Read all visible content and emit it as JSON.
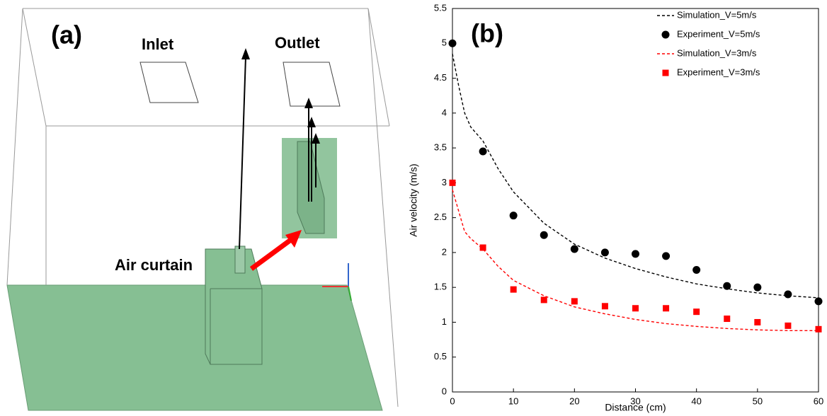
{
  "panel_a": {
    "label": "(a)",
    "inlet": "Inlet",
    "outlet": "Outlet",
    "device": "Air curtain"
  },
  "chart_data": {
    "type": "scatter-line",
    "annotation": "(b)",
    "x_label": "Distance (cm)",
    "y_label": "Air velocity (m/s)",
    "xlim": [
      0,
      60
    ],
    "xticks": [
      0,
      10,
      20,
      30,
      40,
      50,
      60
    ],
    "ylim": [
      0,
      5.5
    ],
    "yticks": [
      0,
      0.5,
      1,
      1.5,
      2,
      2.5,
      3,
      3.5,
      4,
      4.5,
      5,
      5.5
    ],
    "legend": "upper right",
    "series": [
      {
        "name": "Simulation_V=5m/s",
        "color": "#000000",
        "style": "dashed",
        "x": [
          0,
          1,
          2,
          3,
          5,
          7.5,
          10,
          15,
          20,
          25,
          30,
          35,
          40,
          45,
          50,
          55,
          60
        ],
        "values": [
          4.85,
          4.4,
          4.0,
          3.8,
          3.6,
          3.2,
          2.87,
          2.42,
          2.12,
          1.92,
          1.77,
          1.65,
          1.55,
          1.48,
          1.42,
          1.38,
          1.35
        ]
      },
      {
        "name": "Experiment_V=5m/s",
        "color": "#000000",
        "style": "circle",
        "x": [
          0,
          5,
          10,
          15,
          20,
          25,
          30,
          35,
          40,
          45,
          50,
          55,
          60
        ],
        "values": [
          5,
          3.45,
          2.53,
          2.25,
          2.05,
          2.0,
          1.98,
          1.95,
          1.75,
          1.52,
          1.5,
          1.4,
          1.3
        ]
      },
      {
        "name": "Simulation_V=3m/s",
        "color": "#ff0000",
        "style": "dashed",
        "x": [
          0,
          1,
          2,
          3,
          5,
          7.5,
          10,
          15,
          20,
          25,
          30,
          35,
          40,
          45,
          50,
          55,
          60
        ],
        "values": [
          2.9,
          2.6,
          2.3,
          2.2,
          2.05,
          1.8,
          1.6,
          1.38,
          1.22,
          1.12,
          1.04,
          0.98,
          0.94,
          0.91,
          0.89,
          0.88,
          0.88
        ]
      },
      {
        "name": "Experiment_V=3m/s",
        "color": "#ff0000",
        "style": "square",
        "x": [
          0,
          5,
          10,
          15,
          20,
          25,
          30,
          35,
          40,
          45,
          50,
          55,
          60
        ],
        "values": [
          3.0,
          2.07,
          1.47,
          1.32,
          1.3,
          1.23,
          1.2,
          1.2,
          1.15,
          1.05,
          1.0,
          0.95,
          0.9
        ]
      }
    ]
  }
}
